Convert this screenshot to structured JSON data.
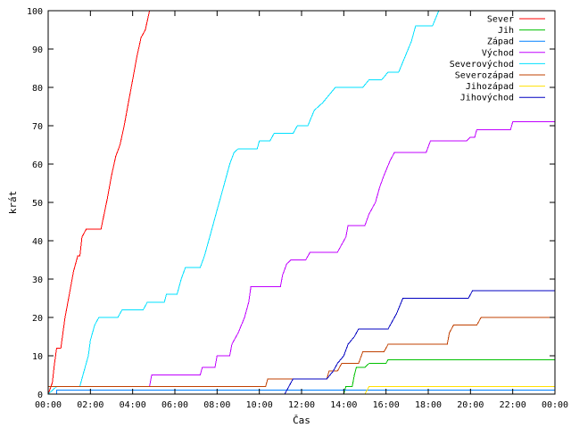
{
  "chart_data": {
    "type": "line",
    "xlabel": "Čas",
    "ylabel": "krát",
    "xlim": [
      0,
      24
    ],
    "ylim": [
      0,
      100
    ],
    "x_ticks": [
      "00:00",
      "02:00",
      "04:00",
      "06:00",
      "08:00",
      "10:00",
      "12:00",
      "14:00",
      "16:00",
      "18:00",
      "20:00",
      "22:00",
      "00:00"
    ],
    "y_ticks": [
      "0",
      "10",
      "20",
      "30",
      "40",
      "50",
      "60",
      "70",
      "80",
      "90",
      "100"
    ],
    "grid": false,
    "legend_position": "top-right",
    "x_unit": "hours since 00:00",
    "series": [
      {
        "name": "Sever",
        "color": "#ff0000",
        "points": [
          [
            0,
            0
          ],
          [
            0.2,
            3
          ],
          [
            0.3,
            8
          ],
          [
            0.4,
            12
          ],
          [
            0.6,
            12
          ],
          [
            0.8,
            20
          ],
          [
            1.0,
            26
          ],
          [
            1.2,
            32
          ],
          [
            1.4,
            36
          ],
          [
            1.5,
            36
          ],
          [
            1.6,
            41
          ],
          [
            1.8,
            43
          ],
          [
            2.5,
            43
          ],
          [
            2.8,
            51
          ],
          [
            3.0,
            57
          ],
          [
            3.2,
            62
          ],
          [
            3.4,
            65
          ],
          [
            3.6,
            70
          ],
          [
            3.8,
            76
          ],
          [
            4.0,
            82
          ],
          [
            4.2,
            88
          ],
          [
            4.4,
            93
          ],
          [
            4.6,
            95
          ],
          [
            4.8,
            100
          ],
          [
            5.1,
            100
          ]
        ]
      },
      {
        "name": "Jih",
        "color": "#00c000",
        "points": [
          [
            13.5,
            0
          ],
          [
            14.0,
            0
          ],
          [
            14.1,
            2
          ],
          [
            14.4,
            2
          ],
          [
            14.5,
            5
          ],
          [
            14.6,
            7
          ],
          [
            15.0,
            7
          ],
          [
            15.2,
            8
          ],
          [
            16.0,
            8
          ],
          [
            16.1,
            9
          ],
          [
            24,
            9
          ]
        ]
      },
      {
        "name": "Západ",
        "color": "#0080ff",
        "points": [
          [
            0.4,
            0
          ],
          [
            0.4,
            1
          ],
          [
            24,
            1
          ]
        ]
      },
      {
        "name": "Východ",
        "color": "#c000ff",
        "points": [
          [
            0,
            2
          ],
          [
            3.6,
            2
          ],
          [
            4.8,
            2
          ],
          [
            4.9,
            5
          ],
          [
            7.2,
            5
          ],
          [
            7.3,
            7
          ],
          [
            7.9,
            7
          ],
          [
            8.0,
            10
          ],
          [
            8.6,
            10
          ],
          [
            8.7,
            13
          ],
          [
            9.0,
            16
          ],
          [
            9.3,
            20
          ],
          [
            9.5,
            24
          ],
          [
            9.6,
            28
          ],
          [
            11.0,
            28
          ],
          [
            11.1,
            31
          ],
          [
            11.3,
            34
          ],
          [
            11.5,
            35
          ],
          [
            12.2,
            35
          ],
          [
            12.4,
            37
          ],
          [
            13.7,
            37
          ],
          [
            13.9,
            39
          ],
          [
            14.1,
            41
          ],
          [
            14.2,
            44
          ],
          [
            15.0,
            44
          ],
          [
            15.2,
            47
          ],
          [
            15.5,
            50
          ],
          [
            15.7,
            54
          ],
          [
            15.9,
            57
          ],
          [
            16.2,
            61
          ],
          [
            16.4,
            63
          ],
          [
            17.9,
            63
          ],
          [
            18.1,
            66
          ],
          [
            19.8,
            66
          ],
          [
            20.0,
            67
          ],
          [
            20.2,
            67
          ],
          [
            20.3,
            69
          ],
          [
            21.9,
            69
          ],
          [
            22.0,
            71
          ],
          [
            24,
            71
          ]
        ]
      },
      {
        "name": "Severovýchod",
        "color": "#00e0ff",
        "points": [
          [
            0,
            0
          ],
          [
            0.4,
            2
          ],
          [
            1.5,
            2
          ],
          [
            1.7,
            6
          ],
          [
            1.9,
            10
          ],
          [
            2.0,
            14
          ],
          [
            2.2,
            18
          ],
          [
            2.4,
            20
          ],
          [
            3.3,
            20
          ],
          [
            3.5,
            22
          ],
          [
            4.5,
            22
          ],
          [
            4.7,
            24
          ],
          [
            5.5,
            24
          ],
          [
            5.6,
            26
          ],
          [
            6.1,
            26
          ],
          [
            6.3,
            30
          ],
          [
            6.5,
            33
          ],
          [
            7.2,
            33
          ],
          [
            7.4,
            36
          ],
          [
            7.6,
            40
          ],
          [
            7.8,
            44
          ],
          [
            8.0,
            48
          ],
          [
            8.2,
            52
          ],
          [
            8.4,
            56
          ],
          [
            8.6,
            60
          ],
          [
            8.8,
            63
          ],
          [
            9.0,
            64
          ],
          [
            9.9,
            64
          ],
          [
            10.0,
            66
          ],
          [
            10.5,
            66
          ],
          [
            10.7,
            68
          ],
          [
            11.6,
            68
          ],
          [
            11.8,
            70
          ],
          [
            12.3,
            70
          ],
          [
            12.6,
            74
          ],
          [
            13.0,
            76
          ],
          [
            13.3,
            78
          ],
          [
            13.6,
            80
          ],
          [
            14.9,
            80
          ],
          [
            15.2,
            82
          ],
          [
            15.8,
            82
          ],
          [
            16.1,
            84
          ],
          [
            16.6,
            84
          ],
          [
            16.9,
            88
          ],
          [
            17.2,
            92
          ],
          [
            17.4,
            96
          ],
          [
            18.2,
            96
          ],
          [
            18.5,
            100
          ]
        ]
      },
      {
        "name": "Severozápad",
        "color": "#c04000",
        "points": [
          [
            0,
            2
          ],
          [
            10.3,
            2
          ],
          [
            10.4,
            4
          ],
          [
            13.2,
            4
          ],
          [
            13.3,
            6
          ],
          [
            13.7,
            6
          ],
          [
            13.9,
            8
          ],
          [
            14.7,
            8
          ],
          [
            14.9,
            11
          ],
          [
            15.9,
            11
          ],
          [
            16.1,
            13
          ],
          [
            18.9,
            13
          ],
          [
            19.0,
            16
          ],
          [
            19.2,
            18
          ],
          [
            20.3,
            18
          ],
          [
            20.5,
            20
          ],
          [
            24,
            20
          ]
        ]
      },
      {
        "name": "Jihozápad",
        "color": "#ffe000",
        "points": [
          [
            15.0,
            0
          ],
          [
            15.2,
            2
          ],
          [
            24,
            2
          ]
        ]
      },
      {
        "name": "Jihovýchod",
        "color": "#0000c0",
        "points": [
          [
            11.2,
            0
          ],
          [
            11.4,
            2
          ],
          [
            11.6,
            4
          ],
          [
            13.2,
            4
          ],
          [
            13.5,
            6
          ],
          [
            13.7,
            8
          ],
          [
            14.0,
            10
          ],
          [
            14.2,
            13
          ],
          [
            14.5,
            15
          ],
          [
            14.7,
            17
          ],
          [
            16.1,
            17
          ],
          [
            16.5,
            21
          ],
          [
            16.8,
            25
          ],
          [
            19.9,
            25
          ],
          [
            20.1,
            27
          ],
          [
            24,
            27
          ]
        ]
      }
    ]
  }
}
